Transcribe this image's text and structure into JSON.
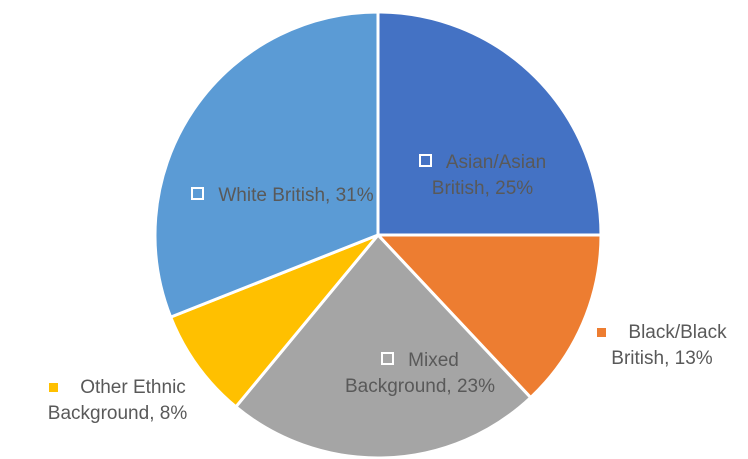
{
  "chart_data": {
    "type": "pie",
    "categories": [
      "Asian/Asian British",
      "Black/Black British",
      "Mixed Background",
      "Other Ethnic Background",
      "White British"
    ],
    "values": [
      25,
      13,
      23,
      8,
      31
    ],
    "value_labels": [
      "25%",
      "13%",
      "23%",
      "8%",
      "31%"
    ],
    "label_separator": ", ",
    "colors": [
      "#4472c4",
      "#ed7d31",
      "#a5a5a5",
      "#ffc000",
      "#5b9bd5"
    ]
  }
}
